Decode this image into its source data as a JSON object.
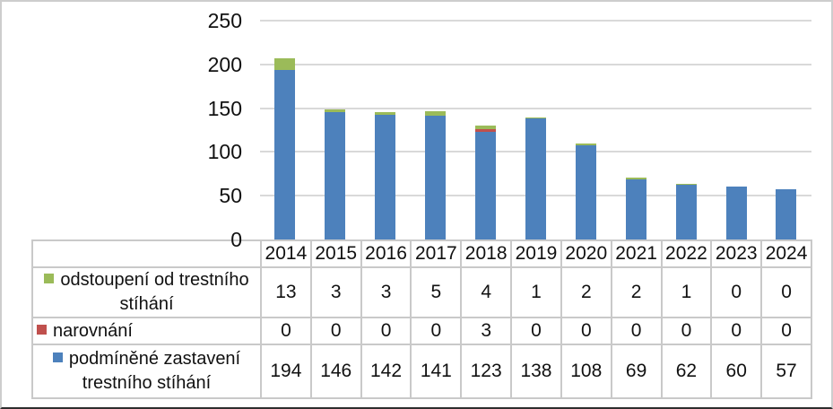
{
  "chart_data": {
    "type": "bar",
    "stacked": true,
    "title": "",
    "xlabel": "",
    "ylabel": "",
    "categories": [
      "2014",
      "2015",
      "2016",
      "2017",
      "2018",
      "2019",
      "2020",
      "2021",
      "2022",
      "2023",
      "2024"
    ],
    "series": [
      {
        "name": "podmíněné zastavení trestního stíhání",
        "color": "#4d81bc",
        "values": [
          194,
          146,
          142,
          141,
          123,
          138,
          108,
          69,
          62,
          60,
          57
        ]
      },
      {
        "name": "narovnání",
        "color": "#c0504d",
        "values": [
          0,
          0,
          0,
          0,
          3,
          0,
          0,
          0,
          0,
          0,
          0
        ]
      },
      {
        "name": "odstoupení od trestního stíhání",
        "color": "#9bbb59",
        "values": [
          13,
          3,
          3,
          5,
          4,
          1,
          2,
          2,
          1,
          0,
          0
        ]
      }
    ],
    "ylim": [
      0,
      250
    ],
    "yticks": [
      0,
      50,
      100,
      150,
      200,
      250
    ],
    "grid": true,
    "gridline_color": "#d9d9d9",
    "legend_position": "data-table-left"
  },
  "data_table": {
    "column_headers": [
      "2014",
      "2015",
      "2016",
      "2017",
      "2018",
      "2019",
      "2020",
      "2021",
      "2022",
      "2023",
      "2024"
    ],
    "rows": [
      {
        "label": "odstoupení od trestního stíhání",
        "legend_color": "#9bbb59",
        "values": [
          "13",
          "3",
          "3",
          "5",
          "4",
          "1",
          "2",
          "2",
          "1",
          "0",
          "0"
        ]
      },
      {
        "label": "narovnání",
        "legend_color": "#c0504d",
        "values": [
          "0",
          "0",
          "0",
          "0",
          "3",
          "0",
          "0",
          "0",
          "0",
          "0",
          "0"
        ]
      },
      {
        "label": "podmíněné zastavení trestního stíhání",
        "legend_color": "#4d81bc",
        "values": [
          "194",
          "146",
          "142",
          "141",
          "123",
          "138",
          "108",
          "69",
          "62",
          "60",
          "57"
        ]
      }
    ]
  },
  "colors": {
    "bar_blue": "#4d81bc",
    "bar_red": "#c0504d",
    "bar_green": "#9bbb59",
    "gridline": "#d9d9d9",
    "table_border": "#c9c9c9"
  }
}
